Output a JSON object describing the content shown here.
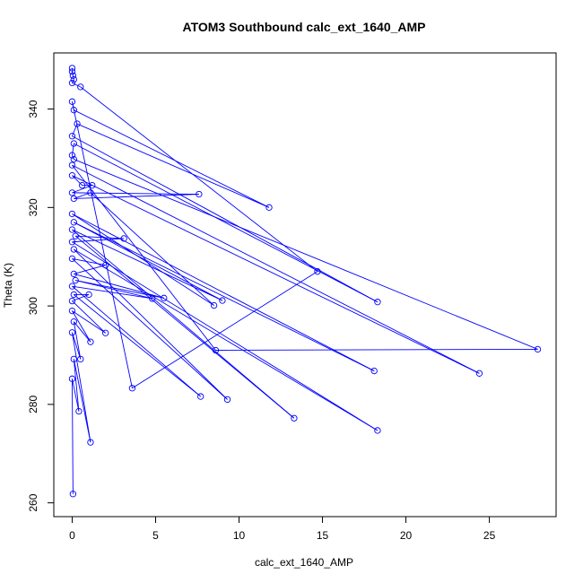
{
  "chart_data": {
    "type": "line",
    "title": "ATOM3 Southbound calc_ext_1640_AMP",
    "xlabel": "calc_ext_1640_AMP",
    "ylabel": "Theta (K)",
    "xlim": [
      -1.1,
      29.0
    ],
    "ylim": [
      257.2,
      351.4
    ],
    "xticks": [
      0,
      5,
      10,
      15,
      20,
      25
    ],
    "yticks": [
      260,
      280,
      300,
      320,
      340
    ],
    "grid": false,
    "series_color": "#0000ff",
    "marker": "open-circle",
    "series": [
      {
        "points": [
          [
            0.0,
            348.3
          ],
          [
            0.0,
            347.6
          ],
          [
            0.05,
            346.8
          ],
          [
            0.1,
            346.0
          ],
          [
            0.0,
            345.3
          ],
          [
            0.5,
            344.5
          ],
          [
            14.7,
            307.0
          ],
          [
            3.6,
            283.3
          ],
          [
            0.0,
            341.5
          ],
          [
            0.1,
            339.8
          ],
          [
            11.8,
            320.0
          ],
          [
            0.3,
            337.0
          ],
          [
            0.0,
            334.5
          ],
          [
            18.3,
            300.8
          ],
          [
            0.1,
            333.0
          ],
          [
            0.0,
            330.6
          ],
          [
            0.1,
            329.8
          ],
          [
            27.9,
            291.2
          ],
          [
            8.6,
            291.0
          ],
          [
            0.0,
            328.6
          ],
          [
            24.4,
            286.3
          ],
          [
            0.0,
            326.5
          ],
          [
            0.6,
            324.5
          ],
          [
            1.2,
            324.5
          ],
          [
            0.0,
            323.0
          ],
          [
            7.6,
            322.7
          ],
          [
            0.1,
            321.8
          ],
          [
            1.1,
            323.0
          ],
          [
            8.5,
            300.1
          ],
          [
            0.0,
            318.7
          ],
          [
            18.1,
            286.8
          ],
          [
            0.1,
            317.0
          ],
          [
            9.0,
            301.1
          ],
          [
            0.0,
            315.5
          ],
          [
            13.3,
            277.2
          ],
          [
            0.2,
            314.2
          ],
          [
            3.1,
            313.7
          ],
          [
            0.0,
            313.0
          ],
          [
            18.3,
            274.7
          ],
          [
            0.1,
            311.5
          ],
          [
            9.3,
            281.0
          ],
          [
            0.0,
            309.6
          ],
          [
            2.0,
            308.3
          ],
          [
            0.1,
            306.5
          ],
          [
            5.5,
            301.6
          ],
          [
            0.2,
            305.2
          ],
          [
            4.8,
            301.5
          ],
          [
            0.0,
            304.0
          ],
          [
            7.7,
            281.6
          ],
          [
            0.1,
            302.3
          ],
          [
            1.0,
            302.3
          ],
          [
            0.0,
            301.0
          ],
          [
            2.0,
            294.5
          ],
          [
            0.0,
            299.0
          ],
          [
            1.1,
            292.7
          ],
          [
            0.1,
            296.8
          ],
          [
            0.5,
            289.2
          ],
          [
            0.0,
            294.6
          ],
          [
            1.1,
            272.3
          ],
          [
            0.1,
            289.2
          ],
          [
            0.4,
            278.6
          ],
          [
            0.0,
            285.2
          ],
          [
            0.05,
            261.8
          ]
        ]
      }
    ]
  }
}
